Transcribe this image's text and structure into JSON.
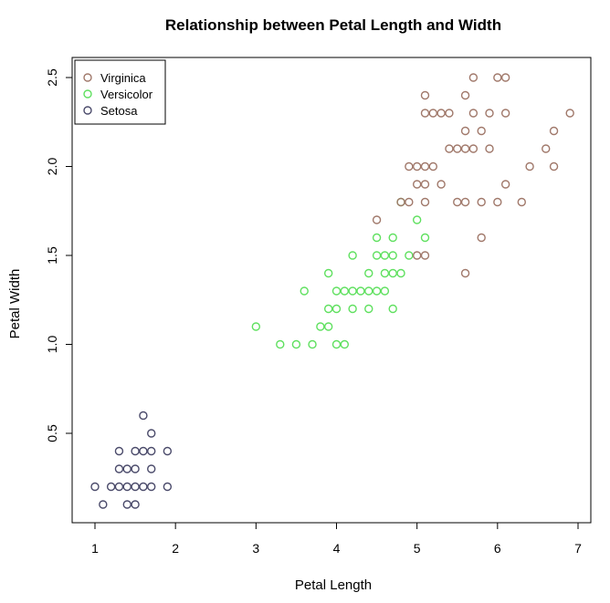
{
  "chart_data": {
    "type": "scatter",
    "title": "Relationship between Petal Length and Width",
    "xlabel": "Petal Length",
    "ylabel": "Petal Width",
    "xlim": [
      0.8,
      7.0
    ],
    "ylim": [
      0.0,
      2.6
    ],
    "x_ticks": [
      1,
      2,
      3,
      4,
      5,
      6,
      7
    ],
    "y_ticks": [
      0.5,
      1.0,
      1.5,
      2.0,
      2.5
    ],
    "x_tick_labels": [
      "1",
      "2",
      "3",
      "4",
      "5",
      "6",
      "7"
    ],
    "y_tick_labels": [
      "0.5",
      "1.0",
      "1.5",
      "2.0",
      "2.5"
    ],
    "grid": false,
    "legend_position": "top-left",
    "legend": [
      "Virginica",
      "Versicolor",
      "Setosa"
    ],
    "marker": "open-circle",
    "series": [
      {
        "name": "Virginica",
        "color": "#a0786a",
        "points": [
          [
            5.7,
            2.5
          ],
          [
            6.0,
            2.5
          ],
          [
            6.1,
            2.5
          ],
          [
            5.1,
            2.4
          ],
          [
            5.6,
            2.4
          ],
          [
            5.1,
            2.3
          ],
          [
            5.2,
            2.3
          ],
          [
            5.3,
            2.3
          ],
          [
            5.4,
            2.3
          ],
          [
            5.7,
            2.3
          ],
          [
            5.9,
            2.3
          ],
          [
            6.1,
            2.3
          ],
          [
            6.9,
            2.3
          ],
          [
            5.6,
            2.2
          ],
          [
            5.8,
            2.2
          ],
          [
            6.7,
            2.2
          ],
          [
            5.4,
            2.1
          ],
          [
            5.5,
            2.1
          ],
          [
            5.6,
            2.1
          ],
          [
            5.7,
            2.1
          ],
          [
            5.9,
            2.1
          ],
          [
            6.6,
            2.1
          ],
          [
            4.9,
            2.0
          ],
          [
            5.0,
            2.0
          ],
          [
            5.1,
            2.0
          ],
          [
            5.2,
            2.0
          ],
          [
            6.4,
            2.0
          ],
          [
            6.7,
            2.0
          ],
          [
            5.0,
            1.9
          ],
          [
            5.1,
            1.9
          ],
          [
            5.3,
            1.9
          ],
          [
            6.1,
            1.9
          ],
          [
            4.8,
            1.8
          ],
          [
            4.9,
            1.8
          ],
          [
            5.1,
            1.8
          ],
          [
            5.5,
            1.8
          ],
          [
            5.6,
            1.8
          ],
          [
            5.8,
            1.8
          ],
          [
            6.0,
            1.8
          ],
          [
            6.3,
            1.8
          ],
          [
            4.5,
            1.7
          ],
          [
            5.8,
            1.6
          ],
          [
            5.0,
            1.5
          ],
          [
            5.1,
            1.5
          ],
          [
            5.6,
            1.4
          ]
        ]
      },
      {
        "name": "Versicolor",
        "color": "#5fe05f",
        "points": [
          [
            4.8,
            1.8
          ],
          [
            5.0,
            1.7
          ],
          [
            4.5,
            1.6
          ],
          [
            4.7,
            1.6
          ],
          [
            5.1,
            1.6
          ],
          [
            4.2,
            1.5
          ],
          [
            4.5,
            1.5
          ],
          [
            4.6,
            1.5
          ],
          [
            4.7,
            1.5
          ],
          [
            4.9,
            1.5
          ],
          [
            3.9,
            1.4
          ],
          [
            4.4,
            1.4
          ],
          [
            4.6,
            1.4
          ],
          [
            4.7,
            1.4
          ],
          [
            4.8,
            1.4
          ],
          [
            3.6,
            1.3
          ],
          [
            4.0,
            1.3
          ],
          [
            4.1,
            1.3
          ],
          [
            4.2,
            1.3
          ],
          [
            4.3,
            1.3
          ],
          [
            4.4,
            1.3
          ],
          [
            4.5,
            1.3
          ],
          [
            4.6,
            1.3
          ],
          [
            3.9,
            1.2
          ],
          [
            4.0,
            1.2
          ],
          [
            4.2,
            1.2
          ],
          [
            4.4,
            1.2
          ],
          [
            4.7,
            1.2
          ],
          [
            3.8,
            1.1
          ],
          [
            3.9,
            1.1
          ],
          [
            3.0,
            1.1
          ],
          [
            3.3,
            1.0
          ],
          [
            3.5,
            1.0
          ],
          [
            3.7,
            1.0
          ],
          [
            4.0,
            1.0
          ],
          [
            4.1,
            1.0
          ]
        ]
      },
      {
        "name": "Setosa",
        "color": "#4a4a6a",
        "points": [
          [
            1.6,
            0.6
          ],
          [
            1.7,
            0.5
          ],
          [
            1.3,
            0.4
          ],
          [
            1.5,
            0.4
          ],
          [
            1.6,
            0.4
          ],
          [
            1.7,
            0.4
          ],
          [
            1.9,
            0.4
          ],
          [
            1.3,
            0.3
          ],
          [
            1.4,
            0.3
          ],
          [
            1.5,
            0.3
          ],
          [
            1.7,
            0.3
          ],
          [
            1.0,
            0.2
          ],
          [
            1.2,
            0.2
          ],
          [
            1.3,
            0.2
          ],
          [
            1.4,
            0.2
          ],
          [
            1.5,
            0.2
          ],
          [
            1.6,
            0.2
          ],
          [
            1.7,
            0.2
          ],
          [
            1.9,
            0.2
          ],
          [
            1.1,
            0.1
          ],
          [
            1.4,
            0.1
          ],
          [
            1.5,
            0.1
          ]
        ]
      }
    ]
  }
}
